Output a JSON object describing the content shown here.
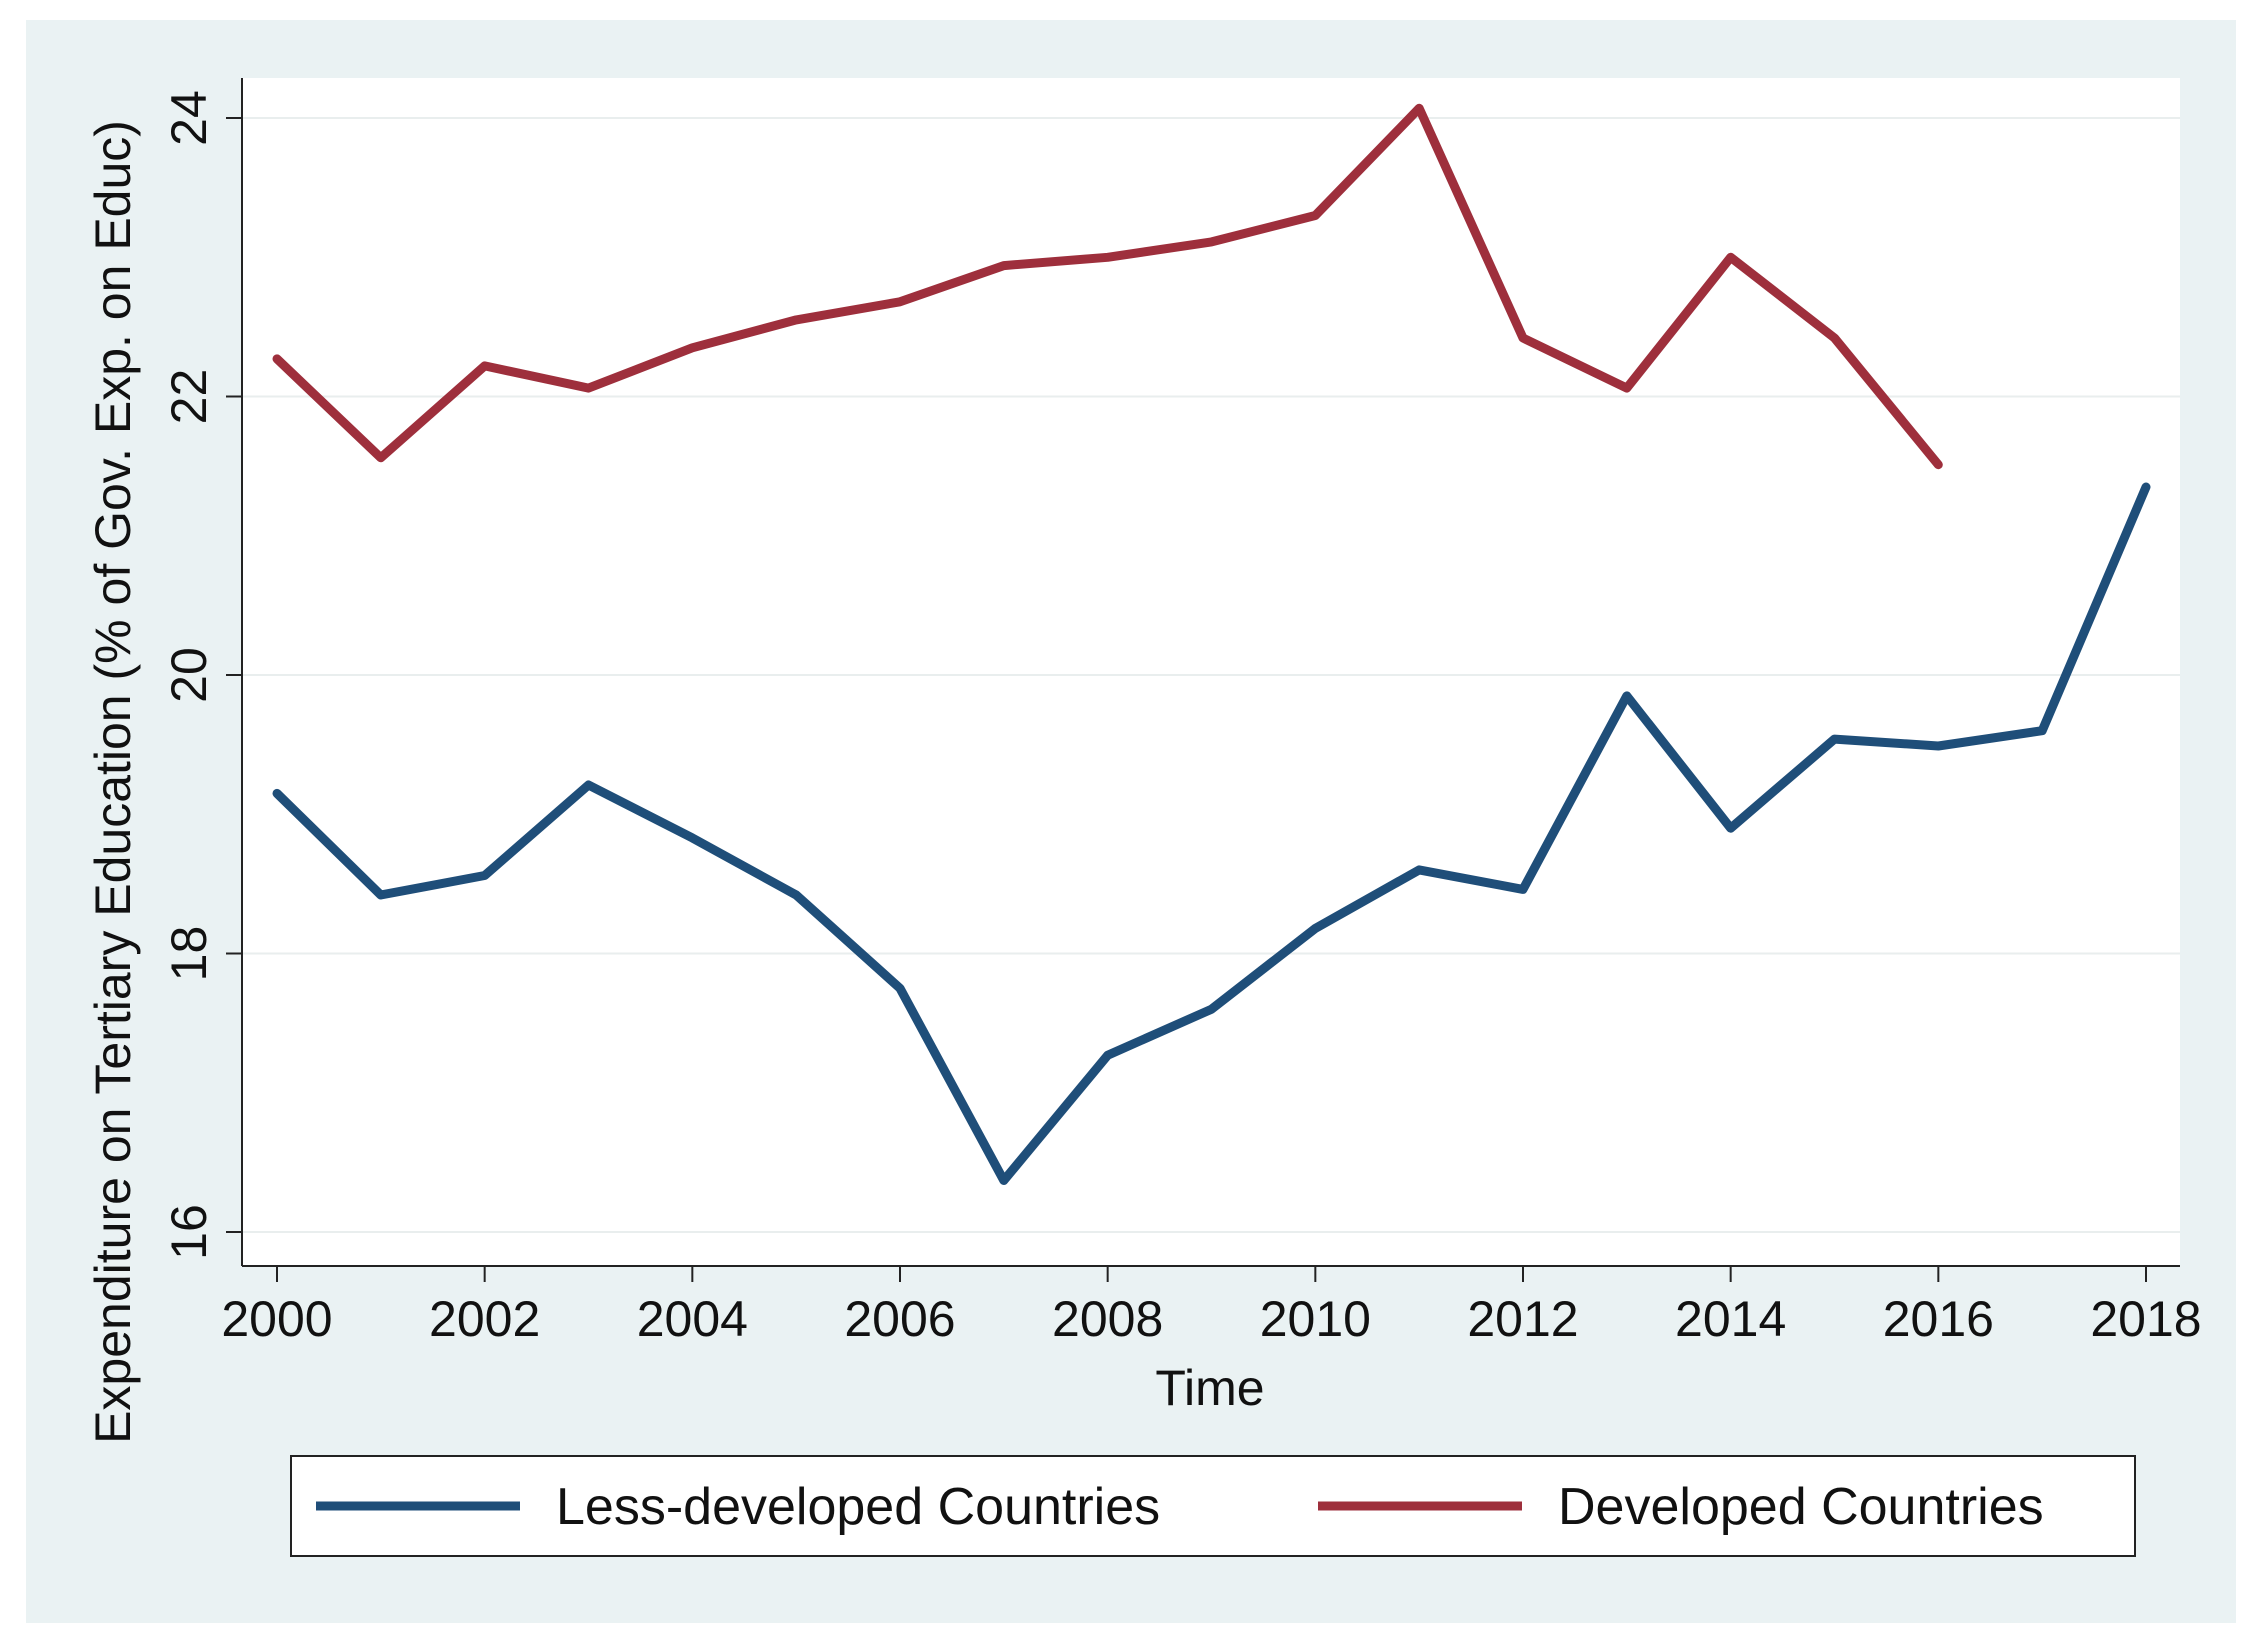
{
  "chart_data": {
    "type": "line",
    "title": "",
    "xlabel": "Time",
    "ylabel": "Expenditure on Tertiary Education (% of Gov. Exp. on Educ)",
    "xlim": [
      2000,
      2018
    ],
    "ylim": [
      16,
      24
    ],
    "x_ticks": [
      2000,
      2002,
      2004,
      2006,
      2008,
      2010,
      2012,
      2014,
      2016,
      2018
    ],
    "x_tick_labels": [
      "2000",
      "2002",
      "2004",
      "2006",
      "2008",
      "2010",
      "2012",
      "2014",
      "2016",
      "2018"
    ],
    "y_ticks": [
      16,
      18,
      20,
      22,
      24
    ],
    "y_tick_labels": [
      "16",
      "18",
      "20",
      "22",
      "24"
    ],
    "grid": true,
    "legend_position": "bottom",
    "series": [
      {
        "name": "Less-developed Countries",
        "color": "#1f4e79",
        "x": [
          2000,
          2001,
          2002,
          2003,
          2004,
          2005,
          2006,
          2007,
          2008,
          2009,
          2010,
          2011,
          2012,
          2013,
          2014,
          2015,
          2016,
          2017,
          2018
        ],
        "values": [
          19.15,
          18.42,
          18.56,
          19.21,
          18.83,
          18.42,
          17.75,
          16.37,
          17.27,
          17.6,
          18.18,
          18.6,
          18.46,
          19.85,
          18.9,
          19.54,
          19.49,
          19.6,
          21.35
        ]
      },
      {
        "name": "Developed Countries",
        "color": "#9e2f3c",
        "x": [
          2000,
          2001,
          2002,
          2003,
          2004,
          2005,
          2006,
          2007,
          2008,
          2009,
          2010,
          2011,
          2012,
          2013,
          2014,
          2015,
          2016
        ],
        "values": [
          22.27,
          21.56,
          22.22,
          22.06,
          22.35,
          22.55,
          22.68,
          22.94,
          23.0,
          23.11,
          23.3,
          24.07,
          22.42,
          22.06,
          23.0,
          22.42,
          21.51
        ]
      }
    ]
  }
}
